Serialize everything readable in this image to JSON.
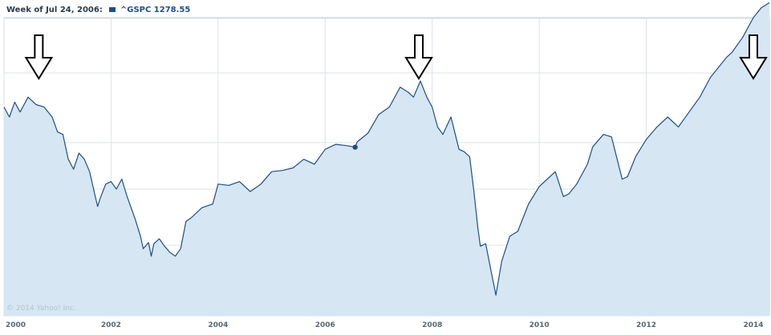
{
  "header": {
    "week_label": "Week of Jul 24, 2006:",
    "legend_label": "^GSPC 1278.55"
  },
  "copyright": "© 2014 Yahoo! Inc.",
  "colors": {
    "line": "#1b4f8a",
    "fill": "#d6e6f2",
    "grid": "#dde3ea",
    "marker": "#1b4f8a"
  },
  "icons": [
    "down-arrow-icon"
  ],
  "chart_data": {
    "type": "area",
    "title": "",
    "xlabel": "",
    "ylabel": "",
    "xlim": [
      2000.0,
      2014.3
    ],
    "ylim": [
      600,
      1800
    ],
    "x_ticks": [
      "2000",
      "2002",
      "2004",
      "2006",
      "2008",
      "2010",
      "2012",
      "2014"
    ],
    "grid": true,
    "series": [
      {
        "name": "^GSPC",
        "x": [
          2000.0,
          2000.1,
          2000.2,
          2000.3,
          2000.45,
          2000.6,
          2000.75,
          2000.9,
          2001.0,
          2001.1,
          2001.2,
          2001.3,
          2001.4,
          2001.5,
          2001.6,
          2001.7,
          2001.75,
          2001.8,
          2001.9,
          2002.0,
          2002.1,
          2002.2,
          2002.3,
          2002.45,
          2002.55,
          2002.6,
          2002.7,
          2002.75,
          2002.8,
          2002.9,
          2003.0,
          2003.1,
          2003.2,
          2003.3,
          2003.4,
          2003.5,
          2003.7,
          2003.9,
          2004.0,
          2004.2,
          2004.4,
          2004.6,
          2004.8,
          2005.0,
          2005.2,
          2005.4,
          2005.6,
          2005.8,
          2006.0,
          2006.2,
          2006.4,
          2006.56,
          2006.6,
          2006.8,
          2007.0,
          2007.2,
          2007.4,
          2007.55,
          2007.65,
          2007.78,
          2007.9,
          2008.0,
          2008.1,
          2008.2,
          2008.35,
          2008.5,
          2008.6,
          2008.7,
          2008.78,
          2008.85,
          2008.9,
          2009.0,
          2009.1,
          2009.19,
          2009.3,
          2009.45,
          2009.6,
          2009.8,
          2010.0,
          2010.15,
          2010.3,
          2010.45,
          2010.55,
          2010.7,
          2010.9,
          2011.0,
          2011.2,
          2011.35,
          2011.55,
          2011.65,
          2011.8,
          2012.0,
          2012.2,
          2012.4,
          2012.6,
          2012.8,
          2013.0,
          2013.2,
          2013.35,
          2013.5,
          2013.6,
          2013.8,
          2014.0,
          2014.15,
          2014.3
        ],
        "values": [
          1440,
          1400,
          1460,
          1420,
          1480,
          1450,
          1440,
          1400,
          1340,
          1330,
          1230,
          1190,
          1255,
          1230,
          1180,
          1085,
          1040,
          1075,
          1130,
          1140,
          1110,
          1150,
          1080,
          990,
          920,
          870,
          895,
          840,
          890,
          910,
          880,
          855,
          840,
          870,
          980,
          995,
          1035,
          1050,
          1130,
          1125,
          1140,
          1100,
          1130,
          1180,
          1185,
          1195,
          1230,
          1210,
          1270,
          1290,
          1285,
          1278.55,
          1300,
          1335,
          1410,
          1440,
          1520,
          1500,
          1480,
          1545,
          1480,
          1440,
          1360,
          1330,
          1400,
          1270,
          1260,
          1240,
          1100,
          960,
          880,
          890,
          780,
          683,
          820,
          920,
          940,
          1050,
          1120,
          1150,
          1180,
          1080,
          1090,
          1130,
          1210,
          1280,
          1330,
          1320,
          1150,
          1160,
          1240,
          1310,
          1360,
          1400,
          1360,
          1420,
          1480,
          1560,
          1600,
          1640,
          1660,
          1720,
          1800,
          1840,
          1860
        ]
      }
    ],
    "marker": {
      "x": 2006.56,
      "value": 1278.55
    },
    "annotations": [
      {
        "type": "down-arrow",
        "x": 2000.65
      },
      {
        "type": "down-arrow",
        "x": 2007.75
      },
      {
        "type": "down-arrow",
        "x": 2014.0
      }
    ]
  }
}
